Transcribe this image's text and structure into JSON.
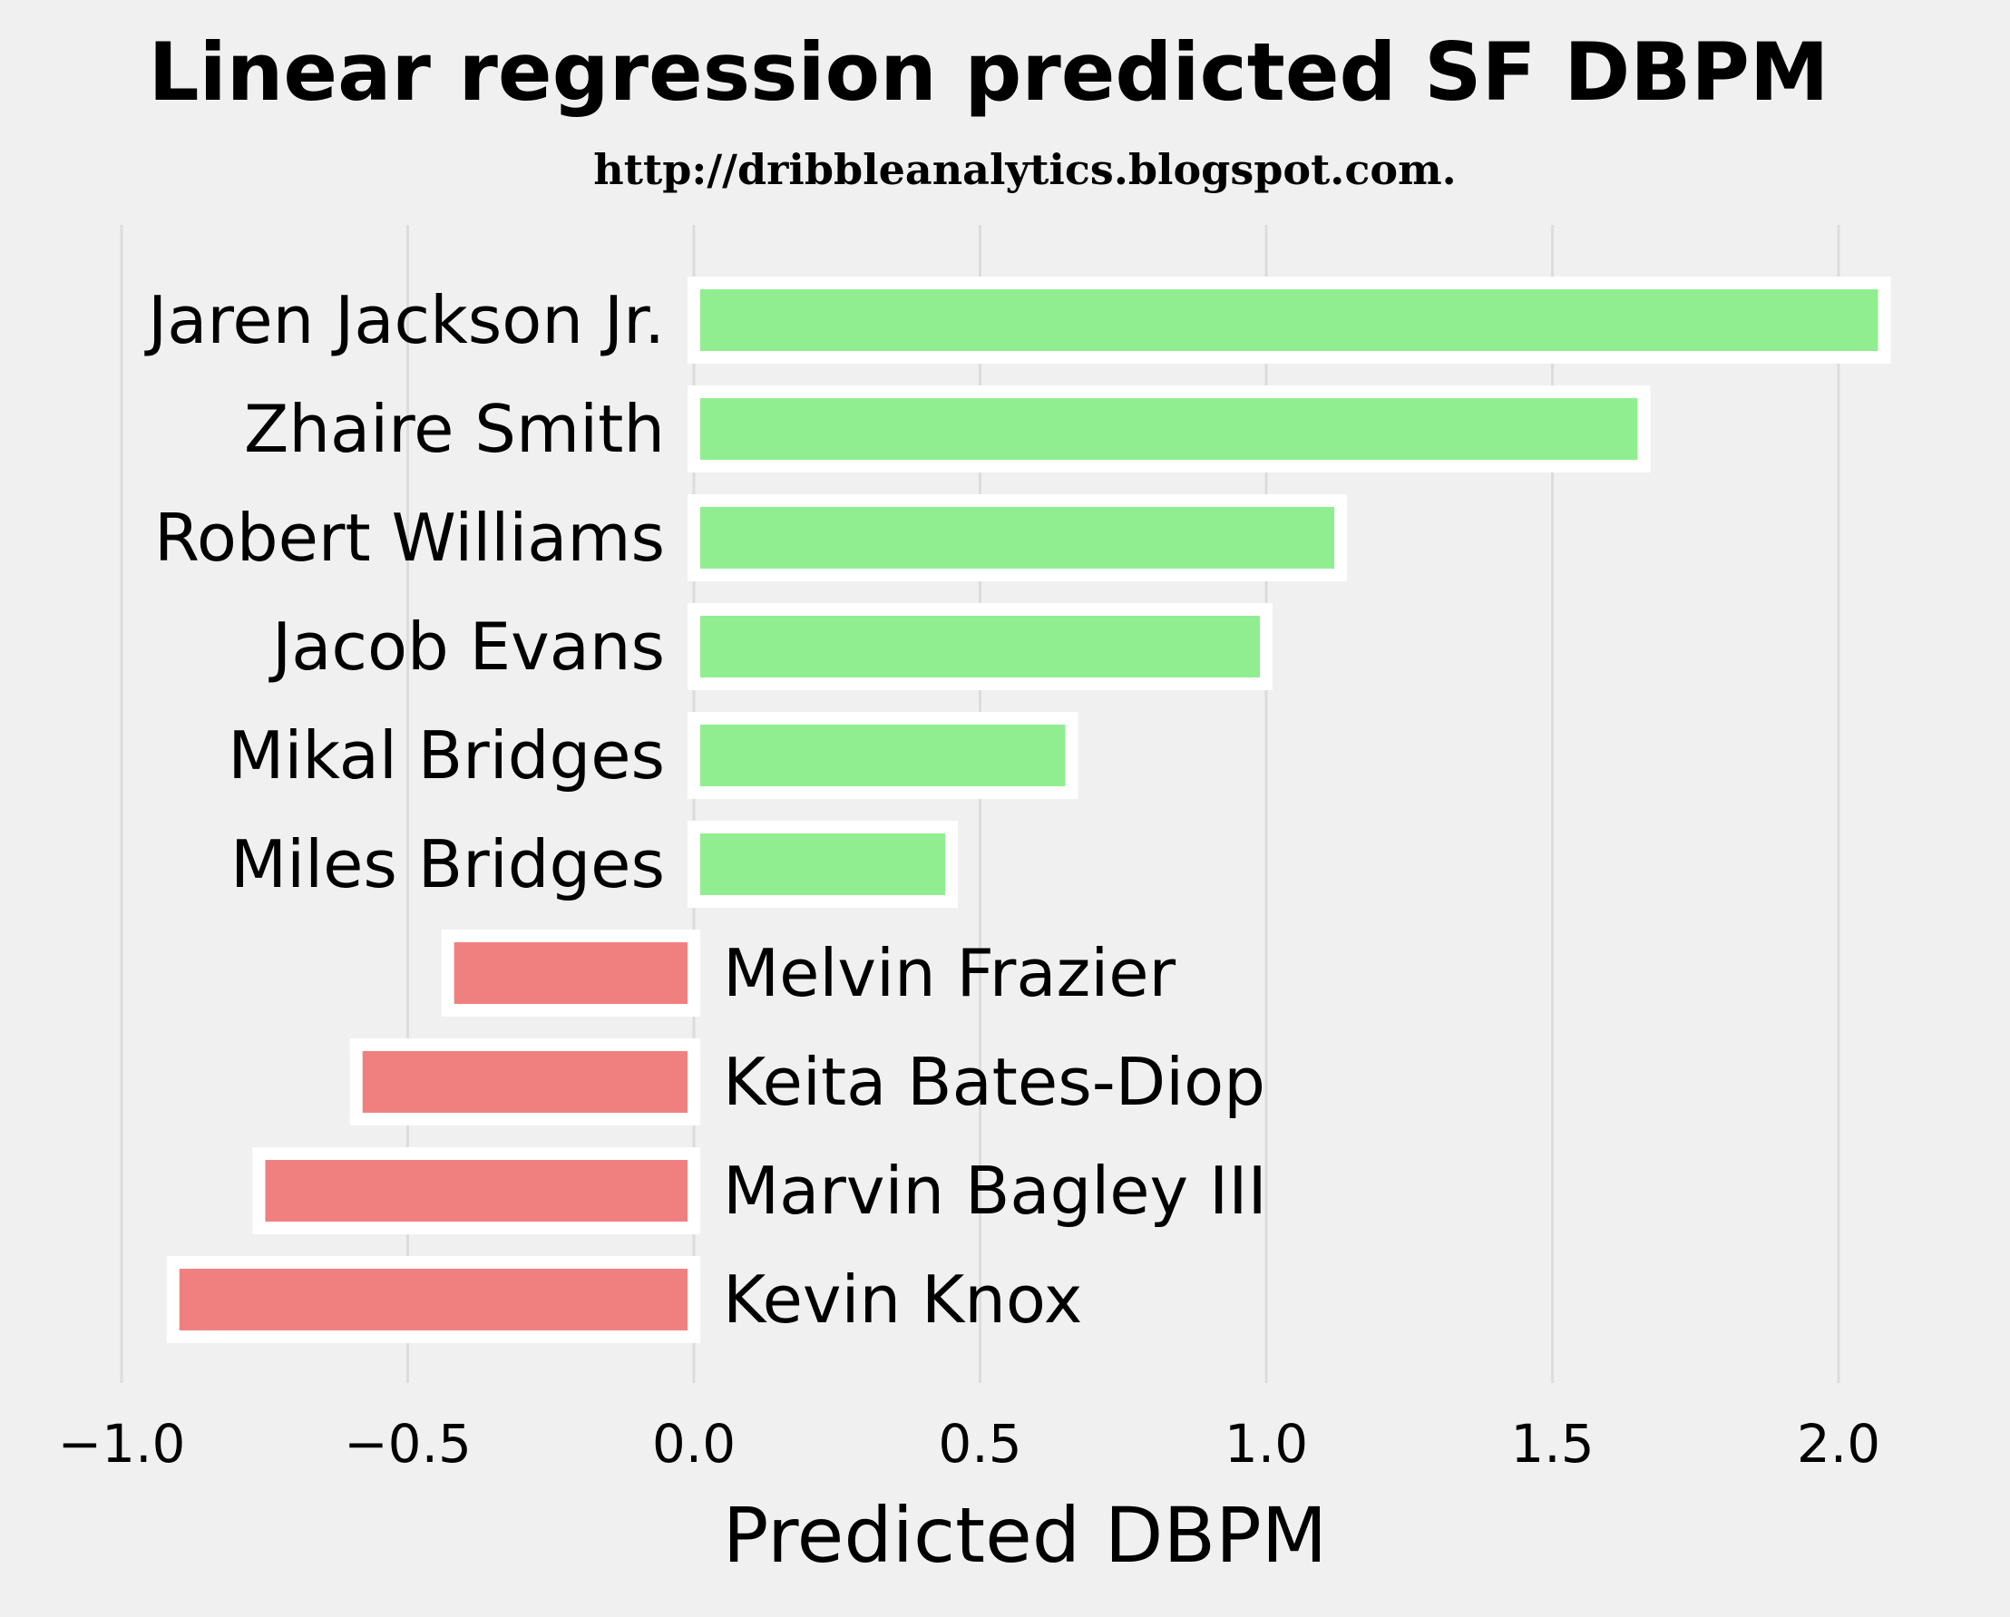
{
  "chart_data": {
    "type": "bar",
    "orientation": "horizontal",
    "title": "Linear regression predicted SF DBPM",
    "subtitle": "http://dribbleanalytics.blogspot.com.",
    "xlabel": "Predicted DBPM",
    "ylabel": "",
    "xlim": [
      -1.0,
      2.1
    ],
    "xticks": [
      -1.0,
      -0.5,
      0.0,
      0.5,
      1.0,
      1.5,
      2.0
    ],
    "xtick_labels": [
      "−1.0",
      "−0.5",
      "0.0",
      "0.5",
      "1.0",
      "1.5",
      "2.0"
    ],
    "grid": true,
    "categories": [
      "Jaren Jackson Jr.",
      "Zhaire Smith",
      "Robert Williams",
      "Jacob Evans",
      "Mikal Bridges",
      "Miles Bridges",
      "Melvin Frazier",
      "Keita Bates-Diop",
      "Marvin Bagley III",
      "Kevin Knox"
    ],
    "values": [
      2.08,
      1.66,
      1.13,
      1.0,
      0.66,
      0.45,
      -0.43,
      -0.59,
      -0.76,
      -0.91
    ],
    "positive_color": "#90ee90",
    "negative_color": "#f08080",
    "bar_edge_color": "#ffffff"
  }
}
